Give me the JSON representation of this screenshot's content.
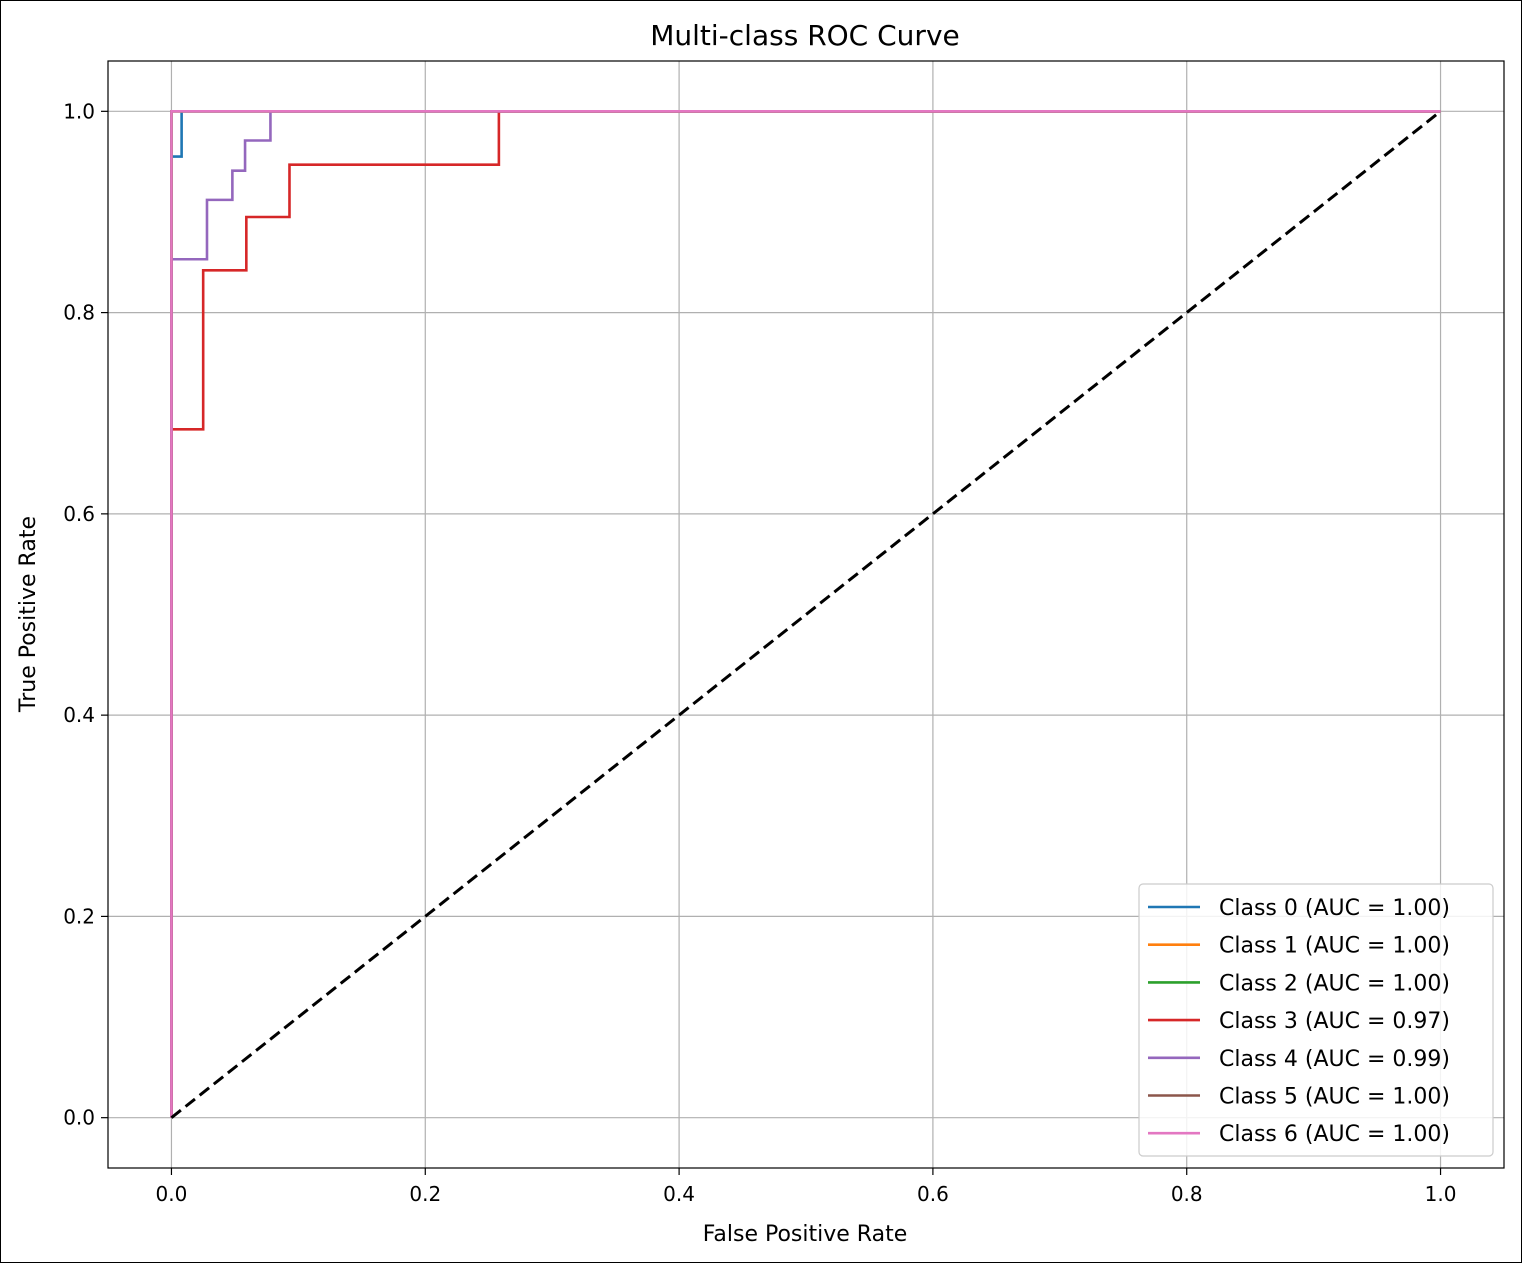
{
  "chart_data": {
    "type": "line",
    "title": "Multi-class ROC Curve",
    "xlabel": "False Positive Rate",
    "ylabel": "True Positive Rate",
    "xlim": [
      -0.05,
      1.05
    ],
    "ylim": [
      -0.05,
      1.05
    ],
    "xticks": [
      "0.0",
      "0.2",
      "0.4",
      "0.6",
      "0.8",
      "1.0"
    ],
    "yticks": [
      "0.0",
      "0.2",
      "0.4",
      "0.6",
      "0.8",
      "1.0"
    ],
    "grid": true,
    "legend_position": "lower-right",
    "series": [
      {
        "name": "Class 0 (AUC = 1.00)",
        "color": "#1f77b4",
        "x": [
          0,
          0,
          0.008,
          0.008,
          1
        ],
        "y": [
          0,
          0.955,
          0.955,
          1,
          1
        ]
      },
      {
        "name": "Class 1 (AUC = 1.00)",
        "color": "#ff7f0e",
        "x": [
          0,
          0,
          1
        ],
        "y": [
          0,
          1,
          1
        ]
      },
      {
        "name": "Class 2 (AUC = 1.00)",
        "color": "#2ca02c",
        "x": [
          0,
          0,
          1
        ],
        "y": [
          0,
          1,
          1
        ]
      },
      {
        "name": "Class 3 (AUC = 0.97)",
        "color": "#d62728",
        "x": [
          0,
          0,
          0.025,
          0.025,
          0.059,
          0.059,
          0.093,
          0.093,
          0.258,
          0.258,
          1
        ],
        "y": [
          0,
          0.684,
          0.684,
          0.842,
          0.842,
          0.895,
          0.895,
          0.947,
          0.947,
          1,
          1
        ]
      },
      {
        "name": "Class 4 (AUC = 0.99)",
        "color": "#9467bd",
        "x": [
          0,
          0,
          0.028,
          0.028,
          0.048,
          0.048,
          0.058,
          0.058,
          0.078,
          0.078,
          1
        ],
        "y": [
          0,
          0.853,
          0.853,
          0.912,
          0.912,
          0.941,
          0.941,
          0.971,
          0.971,
          1,
          1
        ]
      },
      {
        "name": "Class 5 (AUC = 1.00)",
        "color": "#8c564b",
        "x": [
          0,
          0,
          1
        ],
        "y": [
          0,
          1,
          1
        ]
      },
      {
        "name": "Class 6 (AUC = 1.00)",
        "color": "#e377c2",
        "x": [
          0,
          0,
          1
        ],
        "y": [
          0,
          1,
          1
        ]
      }
    ],
    "reference_line": {
      "color": "#000000",
      "style": "dashed",
      "x": [
        0,
        1
      ],
      "y": [
        0,
        1
      ]
    }
  }
}
